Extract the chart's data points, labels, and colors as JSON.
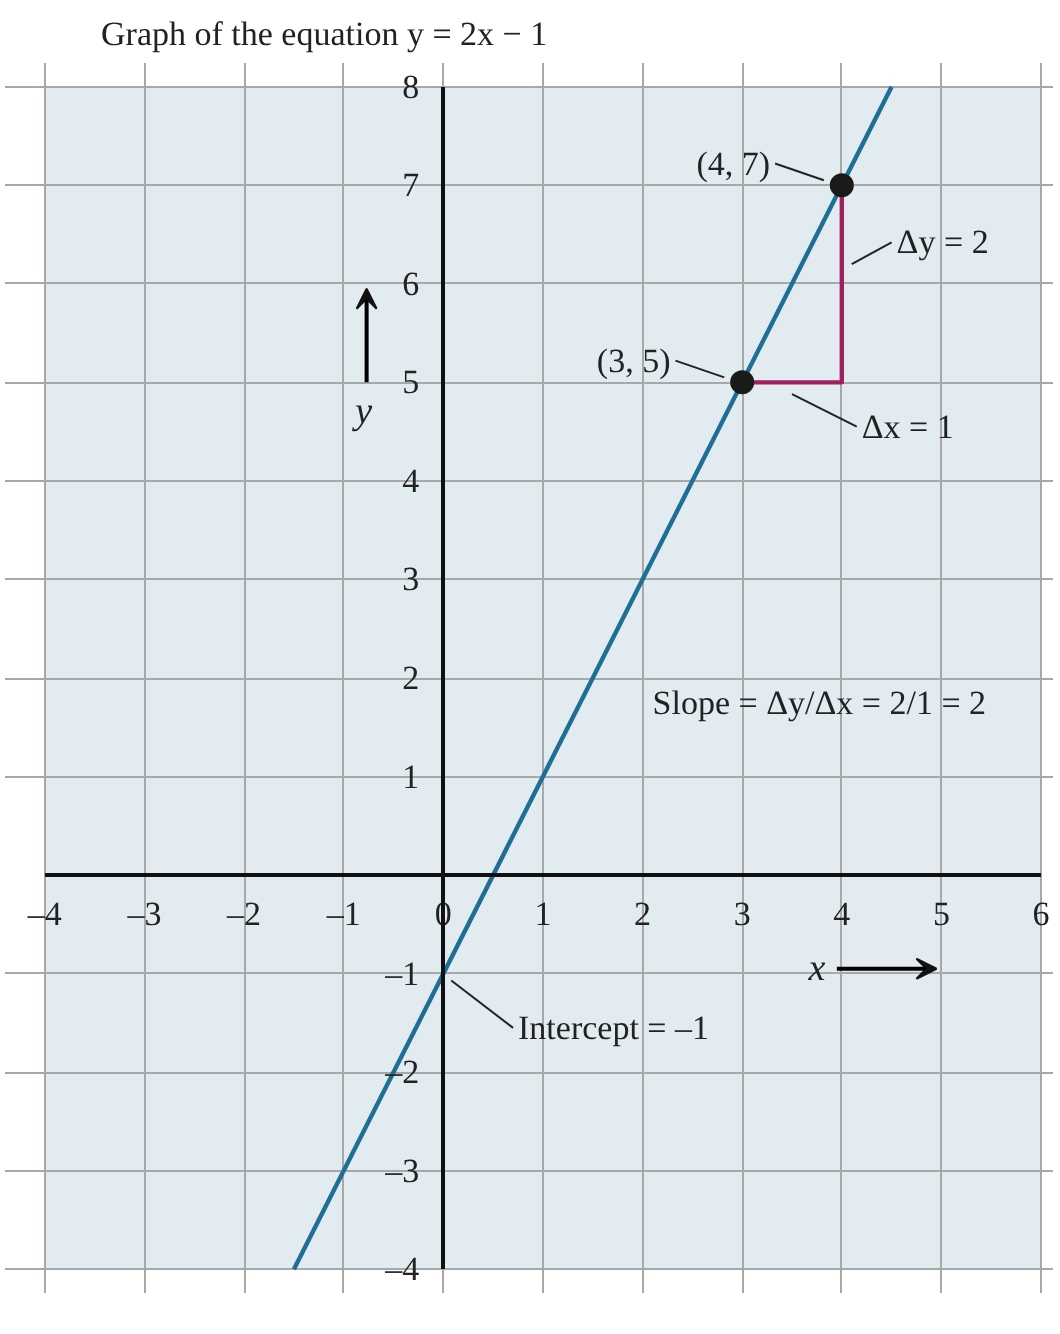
{
  "chart_data": {
    "type": "line",
    "title": "Graph of the equation y = 2x − 1",
    "xlabel": "x",
    "ylabel": "y",
    "xlim": [
      -4,
      6
    ],
    "ylim": [
      -4,
      8
    ],
    "xticks": [
      {
        "value": -4,
        "label": "–4"
      },
      {
        "value": -3,
        "label": "–3"
      },
      {
        "value": -2,
        "label": "–2"
      },
      {
        "value": -1,
        "label": "–1"
      },
      0,
      1,
      2,
      3,
      4,
      5,
      6
    ],
    "yticks": [
      {
        "value": -4,
        "label": "–4"
      },
      {
        "value": -3,
        "label": "–3"
      },
      {
        "value": -2,
        "label": "–2"
      },
      {
        "value": -1,
        "label": "–1"
      },
      1,
      2,
      3,
      4,
      5,
      6,
      7,
      8
    ],
    "grid": true,
    "series": [
      {
        "color": "#1f6e96",
        "x": [
          -1.5,
          4.5
        ],
        "values": [
          -4,
          8
        ]
      },
      {
        "type": "line",
        "color": "#a0205f",
        "x": [
          3,
          4,
          4
        ],
        "values": [
          5,
          5,
          7
        ]
      },
      {
        "type": "scatter",
        "color": "#1a1a1a",
        "marker": "circle",
        "x": [
          3,
          4
        ],
        "values": [
          5,
          7
        ]
      }
    ],
    "annotations": [
      {
        "text": "(4, 7)",
        "x": 4,
        "y": 7
      },
      {
        "text": "(3, 5)",
        "x": 3,
        "y": 5
      },
      {
        "text": "Δy = 2",
        "x": 4,
        "y": 6.5
      },
      {
        "text": "Δx = 1",
        "x": 3.5,
        "y": 5
      },
      {
        "text": "Intercept = –1",
        "x": 0,
        "y": -1
      },
      "Slope = Δy/Δx = 2/1 = 2"
    ]
  }
}
